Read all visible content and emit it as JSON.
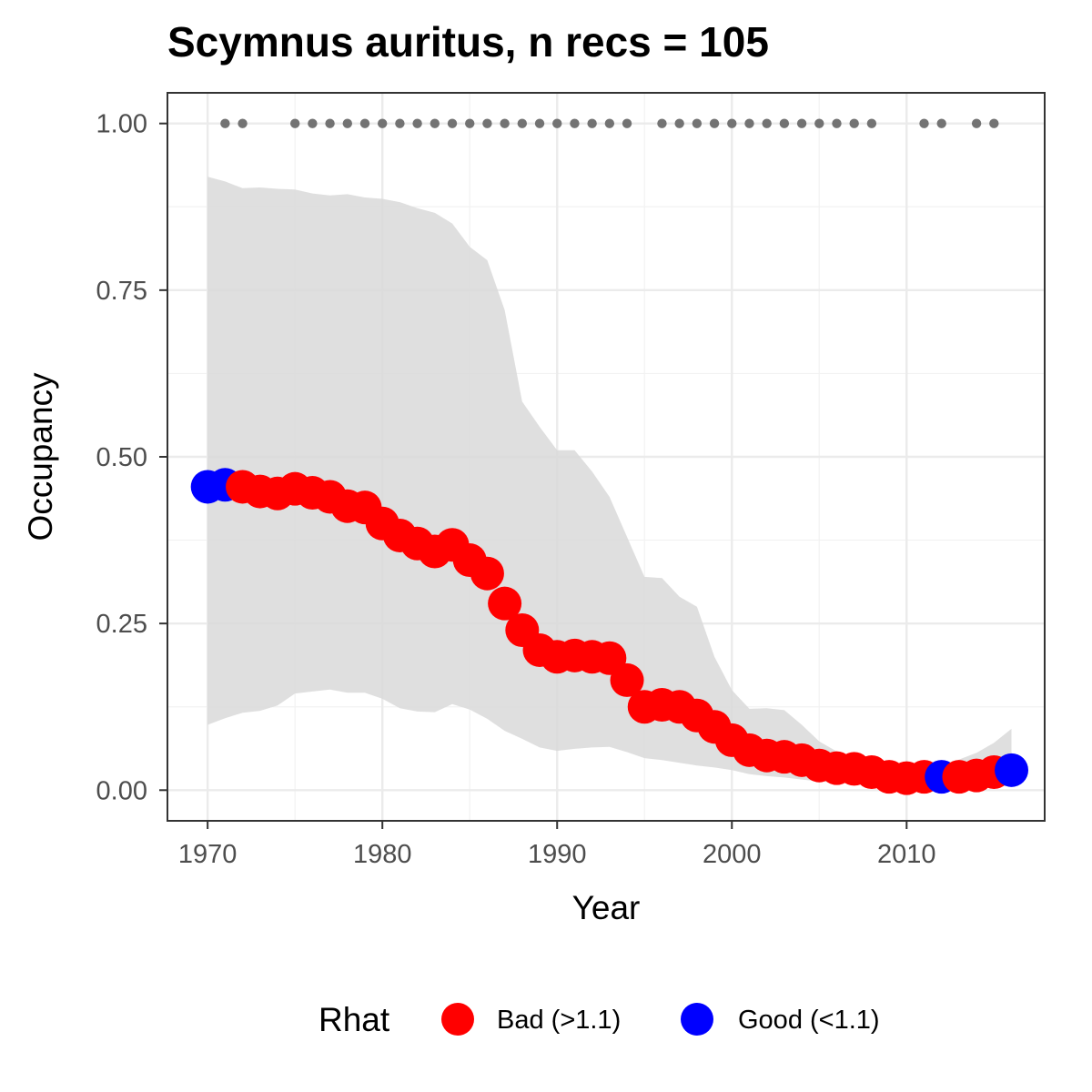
{
  "chart_data": {
    "type": "line",
    "title": "Scymnus auritus, n recs = 105",
    "xlabel": "Year",
    "ylabel": "Occupancy",
    "xlim": [
      1967.7,
      2017.9
    ],
    "ylim": [
      -0.046,
      1.046
    ],
    "x_ticks": [
      1970,
      1980,
      1990,
      2000,
      2010
    ],
    "y_ticks": [
      0,
      0.25,
      0.5,
      0.75,
      1.0
    ],
    "x_tick_labels": [
      "1970",
      "1980",
      "1990",
      "2000",
      "2010"
    ],
    "y_tick_labels": [
      "0.00",
      "0.25",
      "0.50",
      "0.75",
      "1.00"
    ],
    "grid": true,
    "legend": {
      "title": "Rhat",
      "position": "bottom",
      "items": [
        {
          "label": "Bad (>1.1)",
          "color": "#ff0000"
        },
        {
          "label": "Good (<1.1)",
          "color": "#0000ff"
        }
      ]
    },
    "colors": {
      "bad": "#ff0000",
      "good": "#0000ff",
      "ribbon": "#d9d9d9",
      "records": "#737373"
    },
    "series": [
      {
        "x": [
          1970,
          1971,
          1972,
          1973,
          1974,
          1975,
          1976,
          1977,
          1978,
          1979,
          1980,
          1981,
          1982,
          1983,
          1984,
          1985,
          1986,
          1987,
          1988,
          1989,
          1990,
          1991,
          1992,
          1993,
          1994,
          1995,
          1996,
          1997,
          1998,
          1999,
          2000,
          2001,
          2002,
          2003,
          2004,
          2005,
          2006,
          2007,
          2008,
          2009,
          2010,
          2011,
          2012,
          2013,
          2014,
          2015,
          2016
        ],
        "values": [
          0.455,
          0.458,
          0.455,
          0.448,
          0.445,
          0.452,
          0.446,
          0.44,
          0.426,
          0.424,
          0.4,
          0.382,
          0.37,
          0.358,
          0.368,
          0.345,
          0.325,
          0.28,
          0.24,
          0.21,
          0.2,
          0.202,
          0.2,
          0.198,
          0.165,
          0.125,
          0.128,
          0.125,
          0.112,
          0.095,
          0.075,
          0.06,
          0.052,
          0.05,
          0.045,
          0.037,
          0.033,
          0.032,
          0.027,
          0.02,
          0.018,
          0.02,
          0.02,
          0.02,
          0.022,
          0.027,
          0.03
        ],
        "lower": [
          0.098,
          0.108,
          0.116,
          0.119,
          0.127,
          0.145,
          0.148,
          0.151,
          0.146,
          0.146,
          0.137,
          0.123,
          0.118,
          0.117,
          0.129,
          0.121,
          0.107,
          0.089,
          0.077,
          0.064,
          0.059,
          0.062,
          0.064,
          0.065,
          0.057,
          0.048,
          0.045,
          0.041,
          0.037,
          0.034,
          0.03,
          0.024,
          0.021,
          0.019,
          0.016,
          0.013,
          0.011,
          0.01,
          0.008,
          0.006,
          0.005,
          0.005,
          0.005,
          0.005,
          0.005,
          0.006,
          0.006
        ],
        "upper": [
          0.92,
          0.913,
          0.903,
          0.904,
          0.902,
          0.901,
          0.895,
          0.892,
          0.894,
          0.889,
          0.887,
          0.882,
          0.873,
          0.866,
          0.85,
          0.815,
          0.795,
          0.72,
          0.583,
          0.545,
          0.51,
          0.51,
          0.478,
          0.44,
          0.38,
          0.32,
          0.318,
          0.29,
          0.275,
          0.2,
          0.15,
          0.122,
          0.123,
          0.12,
          0.098,
          0.073,
          0.058,
          0.045,
          0.038,
          0.032,
          0.03,
          0.03,
          0.034,
          0.046,
          0.056,
          0.071,
          0.092
        ],
        "rhat_status": [
          "good",
          "good",
          "bad",
          "bad",
          "bad",
          "bad",
          "bad",
          "bad",
          "bad",
          "bad",
          "bad",
          "bad",
          "bad",
          "bad",
          "bad",
          "bad",
          "bad",
          "bad",
          "bad",
          "bad",
          "bad",
          "bad",
          "bad",
          "bad",
          "bad",
          "bad",
          "bad",
          "bad",
          "bad",
          "bad",
          "bad",
          "bad",
          "bad",
          "bad",
          "bad",
          "bad",
          "bad",
          "bad",
          "bad",
          "bad",
          "bad",
          "bad",
          "good",
          "bad",
          "bad",
          "bad",
          "good"
        ]
      }
    ],
    "record_years": [
      1971,
      1972,
      1975,
      1976,
      1977,
      1978,
      1979,
      1980,
      1981,
      1982,
      1983,
      1984,
      1985,
      1986,
      1987,
      1988,
      1989,
      1990,
      1991,
      1992,
      1993,
      1994,
      1996,
      1997,
      1998,
      1999,
      2000,
      2001,
      2002,
      2003,
      2004,
      2005,
      2006,
      2007,
      2008,
      2011,
      2012,
      2014,
      2015
    ]
  }
}
